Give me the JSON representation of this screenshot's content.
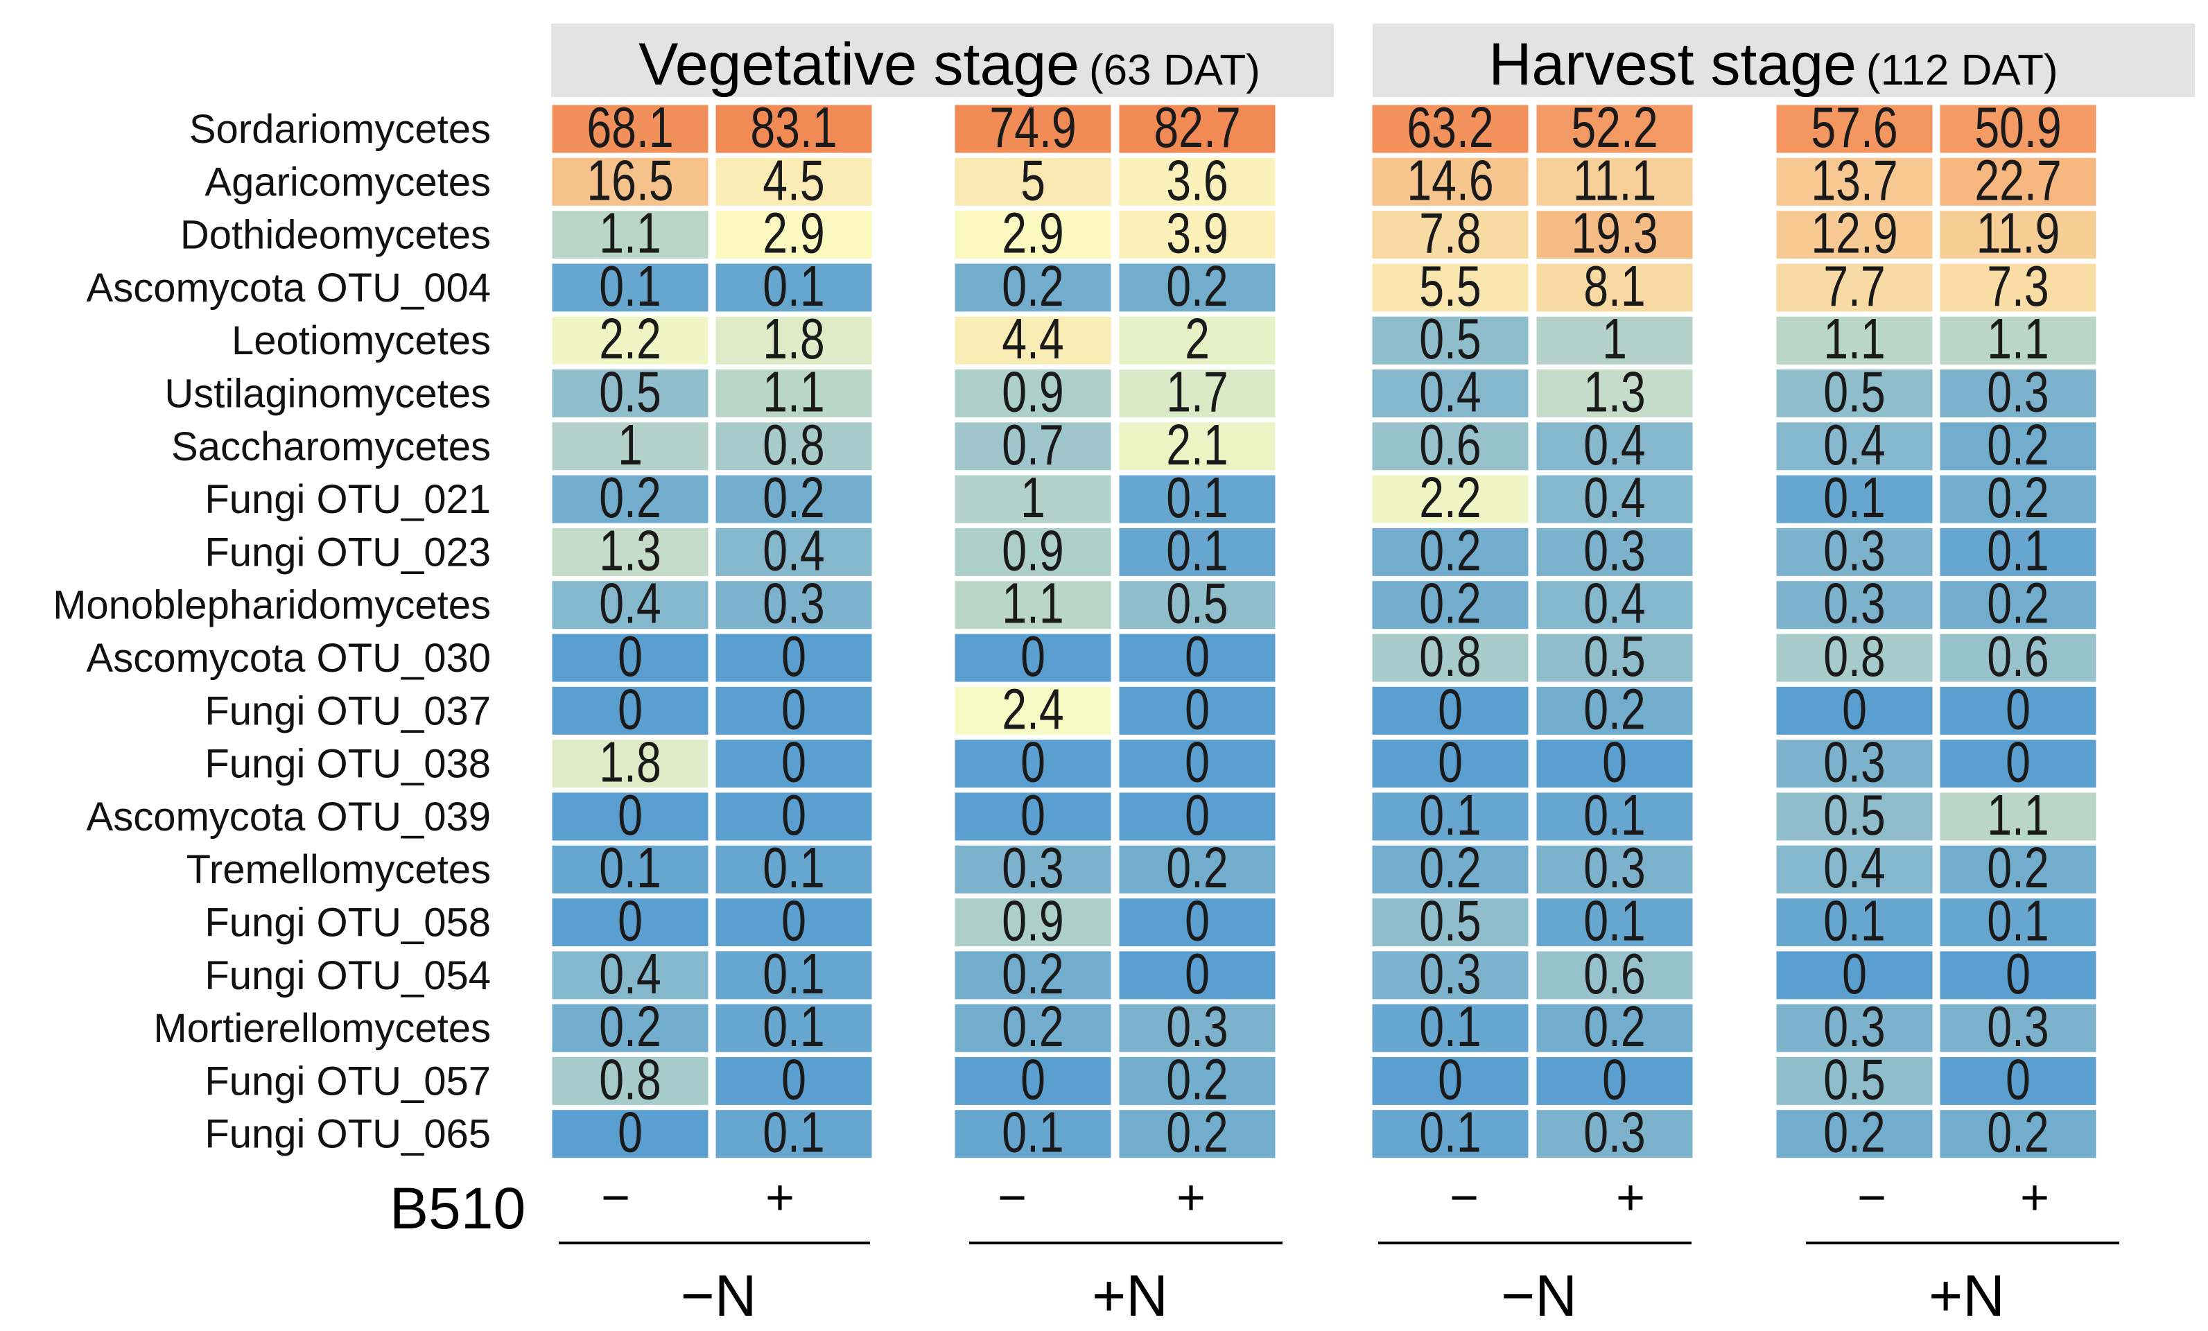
{
  "chart_data": {
    "type": "heatmap",
    "row_labels": [
      "Sordariomycetes",
      "Agaricomycetes",
      "Dothideomycetes",
      "Ascomycota OTU_004",
      "Leotiomycetes",
      "Ustilaginomycetes",
      "Saccharomycetes",
      "Fungi OTU_021",
      "Fungi OTU_023",
      "Monoblepharidomycetes",
      "Ascomycota OTU_030",
      "Fungi OTU_037",
      "Fungi OTU_038",
      "Ascomycota OTU_039",
      "Tremellomycetes",
      "Fungi OTU_058",
      "Fungi OTU_054",
      "Mortierellomycetes",
      "Fungi OTU_057",
      "Fungi OTU_065"
    ],
    "stages": [
      {
        "name": "Vegetative stage",
        "sub": "(63 DAT)",
        "groups": [
          {
            "label": "−N",
            "columns": [
              {
                "sign": "−",
                "values": [
                  "68.1",
                  "16.5",
                  "1.1",
                  "0.1",
                  "2.2",
                  "0.5",
                  "1",
                  "0.2",
                  "1.3",
                  "0.4",
                  "0",
                  "0",
                  "1.8",
                  "0",
                  "0.1",
                  "0",
                  "0.4",
                  "0.2",
                  "0.8",
                  "0"
                ]
              },
              {
                "sign": "+",
                "values": [
                  "83.1",
                  "4.5",
                  "2.9",
                  "0.1",
                  "1.8",
                  "1.1",
                  "0.8",
                  "0.2",
                  "0.4",
                  "0.3",
                  "0",
                  "0",
                  "0",
                  "0",
                  "0.1",
                  "0",
                  "0.1",
                  "0.1",
                  "0",
                  "0.1"
                ]
              }
            ]
          },
          {
            "label": "+N",
            "columns": [
              {
                "sign": "−",
                "values": [
                  "74.9",
                  "5",
                  "2.9",
                  "0.2",
                  "4.4",
                  "0.9",
                  "0.7",
                  "1",
                  "0.9",
                  "1.1",
                  "0",
                  "2.4",
                  "0",
                  "0",
                  "0.3",
                  "0.9",
                  "0.2",
                  "0.2",
                  "0",
                  "0.1"
                ]
              },
              {
                "sign": "+",
                "values": [
                  "82.7",
                  "3.6",
                  "3.9",
                  "0.2",
                  "2",
                  "1.7",
                  "2.1",
                  "0.1",
                  "0.1",
                  "0.5",
                  "0",
                  "0",
                  "0",
                  "0",
                  "0.2",
                  "0",
                  "0",
                  "0.3",
                  "0.2",
                  "0.2"
                ]
              }
            ]
          }
        ]
      },
      {
        "name": "Harvest stage",
        "sub": "(112 DAT)",
        "groups": [
          {
            "label": "−N",
            "columns": [
              {
                "sign": "−",
                "values": [
                  "63.2",
                  "14.6",
                  "7.8",
                  "5.5",
                  "0.5",
                  "0.4",
                  "0.6",
                  "2.2",
                  "0.2",
                  "0.2",
                  "0.8",
                  "0",
                  "0",
                  "0.1",
                  "0.2",
                  "0.5",
                  "0.3",
                  "0.1",
                  "0",
                  "0.1"
                ]
              },
              {
                "sign": "+",
                "values": [
                  "52.2",
                  "11.1",
                  "19.3",
                  "8.1",
                  "1",
                  "1.3",
                  "0.4",
                  "0.4",
                  "0.3",
                  "0.4",
                  "0.5",
                  "0.2",
                  "0",
                  "0.1",
                  "0.3",
                  "0.1",
                  "0.6",
                  "0.2",
                  "0",
                  "0.3"
                ]
              }
            ]
          },
          {
            "label": "+N",
            "columns": [
              {
                "sign": "−",
                "values": [
                  "57.6",
                  "13.7",
                  "12.9",
                  "7.7",
                  "1.1",
                  "0.5",
                  "0.4",
                  "0.1",
                  "0.3",
                  "0.3",
                  "0.8",
                  "0",
                  "0.3",
                  "0.5",
                  "0.4",
                  "0.1",
                  "0",
                  "0.3",
                  "0.5",
                  "0.2"
                ]
              },
              {
                "sign": "+",
                "values": [
                  "50.9",
                  "22.7",
                  "11.9",
                  "7.3",
                  "1.1",
                  "0.3",
                  "0.2",
                  "0.2",
                  "0.1",
                  "0.2",
                  "0.6",
                  "0",
                  "0",
                  "1.1",
                  "0.2",
                  "0.1",
                  "0",
                  "0.3",
                  "0",
                  "0.2"
                ]
              }
            ]
          }
        ]
      }
    ],
    "treatment_label": "B510",
    "color_scale": {
      "low": "#5b9fd0",
      "mid": "#fbfcc4",
      "high": "#f28a55",
      "header_fill": "#e3e3e3"
    }
  }
}
